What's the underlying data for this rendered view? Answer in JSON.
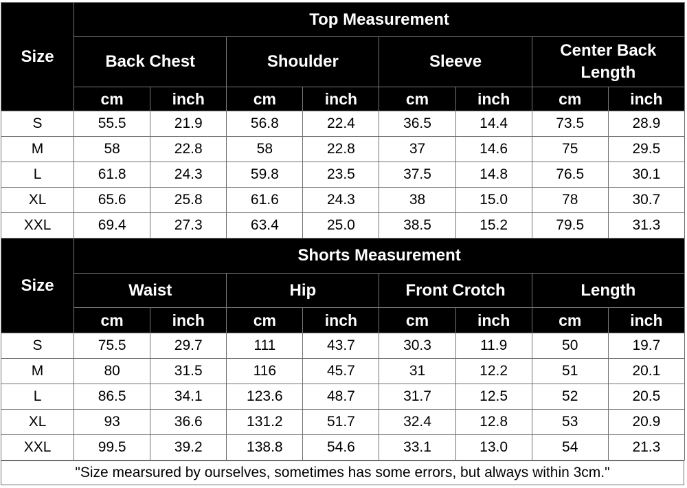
{
  "top": {
    "title": "Top Measurement",
    "size_label": "Size",
    "groups": [
      "Back Chest",
      "Shoulder",
      "Sleeve",
      "Center Back Length"
    ],
    "units": [
      "cm",
      "inch",
      "cm",
      "inch",
      "cm",
      "inch",
      "cm",
      "inch"
    ],
    "rows": [
      [
        "S",
        "55.5",
        "21.9",
        "56.8",
        "22.4",
        "36.5",
        "14.4",
        "73.5",
        "28.9"
      ],
      [
        "M",
        "58",
        "22.8",
        "58",
        "22.8",
        "37",
        "14.6",
        "75",
        "29.5"
      ],
      [
        "L",
        "61.8",
        "24.3",
        "59.8",
        "23.5",
        "37.5",
        "14.8",
        "76.5",
        "30.1"
      ],
      [
        "XL",
        "65.6",
        "25.8",
        "61.6",
        "24.3",
        "38",
        "15.0",
        "78",
        "30.7"
      ],
      [
        "XXL",
        "69.4",
        "27.3",
        "63.4",
        "25.0",
        "38.5",
        "15.2",
        "79.5",
        "31.3"
      ]
    ]
  },
  "shorts": {
    "title": "Shorts Measurement",
    "size_label": "Size",
    "groups": [
      "Waist",
      "Hip",
      "Front Crotch",
      "Length"
    ],
    "units": [
      "cm",
      "inch",
      "cm",
      "inch",
      "cm",
      "inch",
      "cm",
      "inch"
    ],
    "rows": [
      [
        "S",
        "75.5",
        "29.7",
        "111",
        "43.7",
        "30.3",
        "11.9",
        "50",
        "19.7"
      ],
      [
        "M",
        "80",
        "31.5",
        "116",
        "45.7",
        "31",
        "12.2",
        "51",
        "20.1"
      ],
      [
        "L",
        "86.5",
        "34.1",
        "123.6",
        "48.7",
        "31.7",
        "12.5",
        "52",
        "20.5"
      ],
      [
        "XL",
        "93",
        "36.6",
        "131.2",
        "51.7",
        "32.4",
        "12.8",
        "53",
        "20.9"
      ],
      [
        "XXL",
        "99.5",
        "39.2",
        "138.8",
        "54.6",
        "33.1",
        "13.0",
        "54",
        "21.3"
      ]
    ]
  },
  "note": "\"Size mearsured by ourselves, sometimes has some errors, but always within 3cm.\""
}
